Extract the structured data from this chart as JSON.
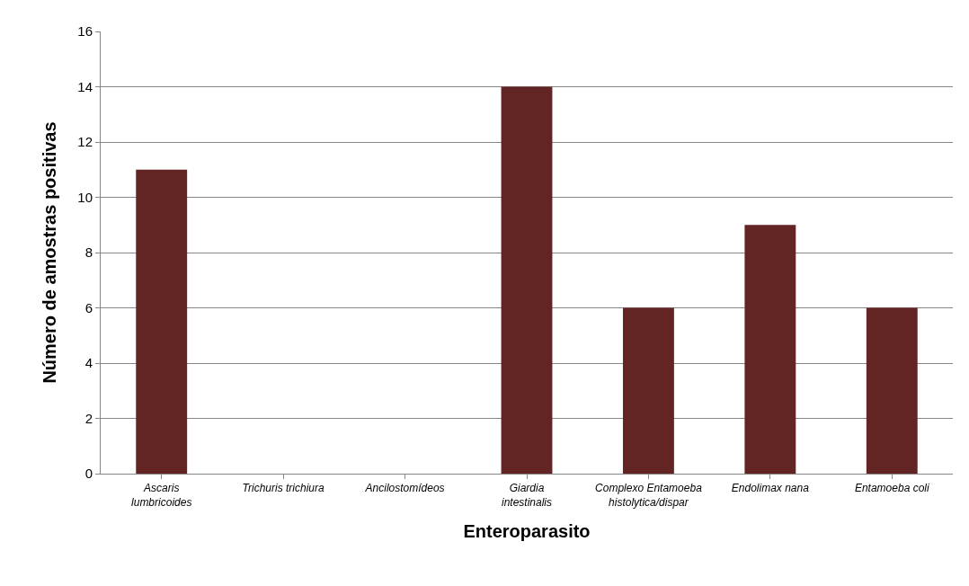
{
  "chart_data": {
    "type": "bar",
    "categories": [
      "Ascaris lumbricoides",
      "Trichuris trichiura",
      "Ancilostomídeos",
      "Giardia intestinalis",
      "Complexo Entamoeba histolytica/dispar",
      "Endolimax nana",
      "Entamoeba coli"
    ],
    "values": [
      11,
      0,
      0,
      14,
      6,
      9,
      6
    ],
    "color": "#632523",
    "xlabel": "Enteroparasito",
    "ylabel": "Número de amostras positivas",
    "ylim": [
      0,
      16
    ],
    "yticks": [
      0,
      2,
      4,
      6,
      8,
      10,
      12,
      14,
      16
    ],
    "grid": "y",
    "legend": false
  }
}
